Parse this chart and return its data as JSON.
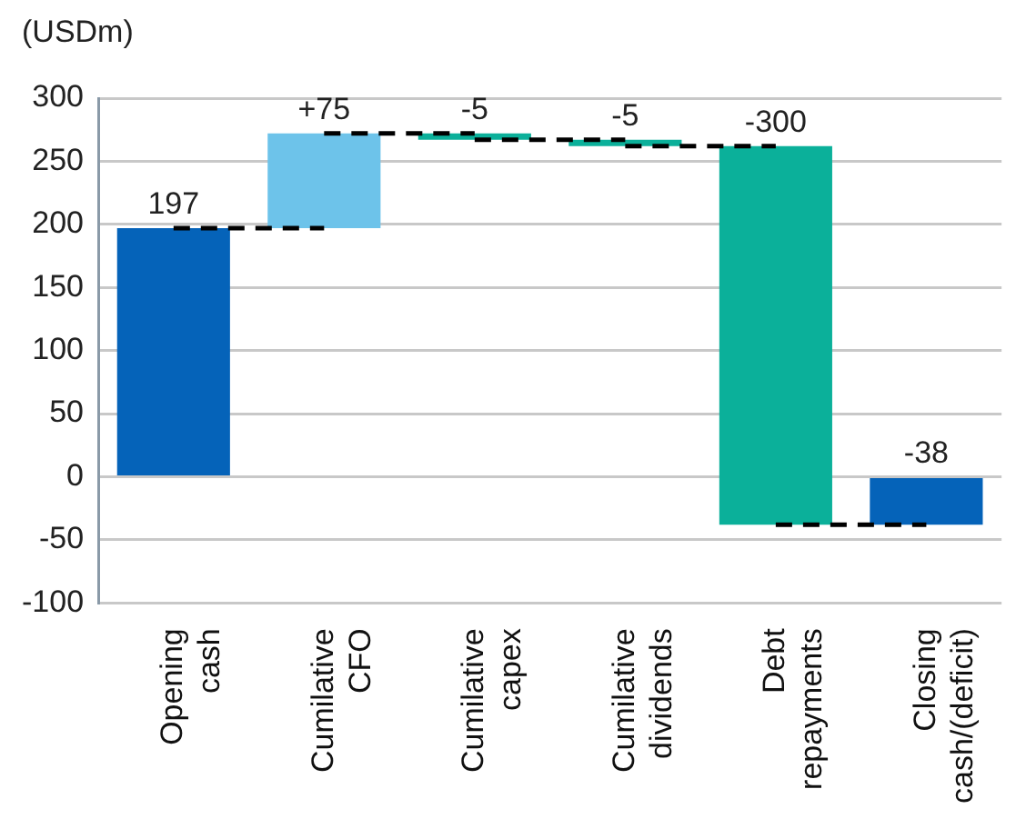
{
  "chart_data": {
    "type": "bar",
    "ylabel": "(USDm)",
    "categories": [
      "Opening cash",
      "Cumilative CFO",
      "Cumilative capex",
      "Cumilative dividends",
      "Debt repayments",
      "Closing cash/(deficit)"
    ],
    "values": [
      197,
      75,
      -5,
      -5,
      -300,
      -38
    ],
    "base": [
      0,
      197,
      272,
      267,
      262,
      0
    ],
    "colors": [
      "#0563b9",
      "#6dc3ea",
      "#0bb09a",
      "#0bb09a",
      "#0bb09a",
      "#0563b9"
    ],
    "value_labels": [
      "197",
      "+75",
      "-5",
      "-5",
      "-300",
      "-38"
    ],
    "ylim": [
      -100,
      300
    ],
    "yticks": [
      -100,
      -50,
      0,
      50,
      100,
      150,
      200,
      250,
      300
    ],
    "grid": "y",
    "legend": false
  }
}
